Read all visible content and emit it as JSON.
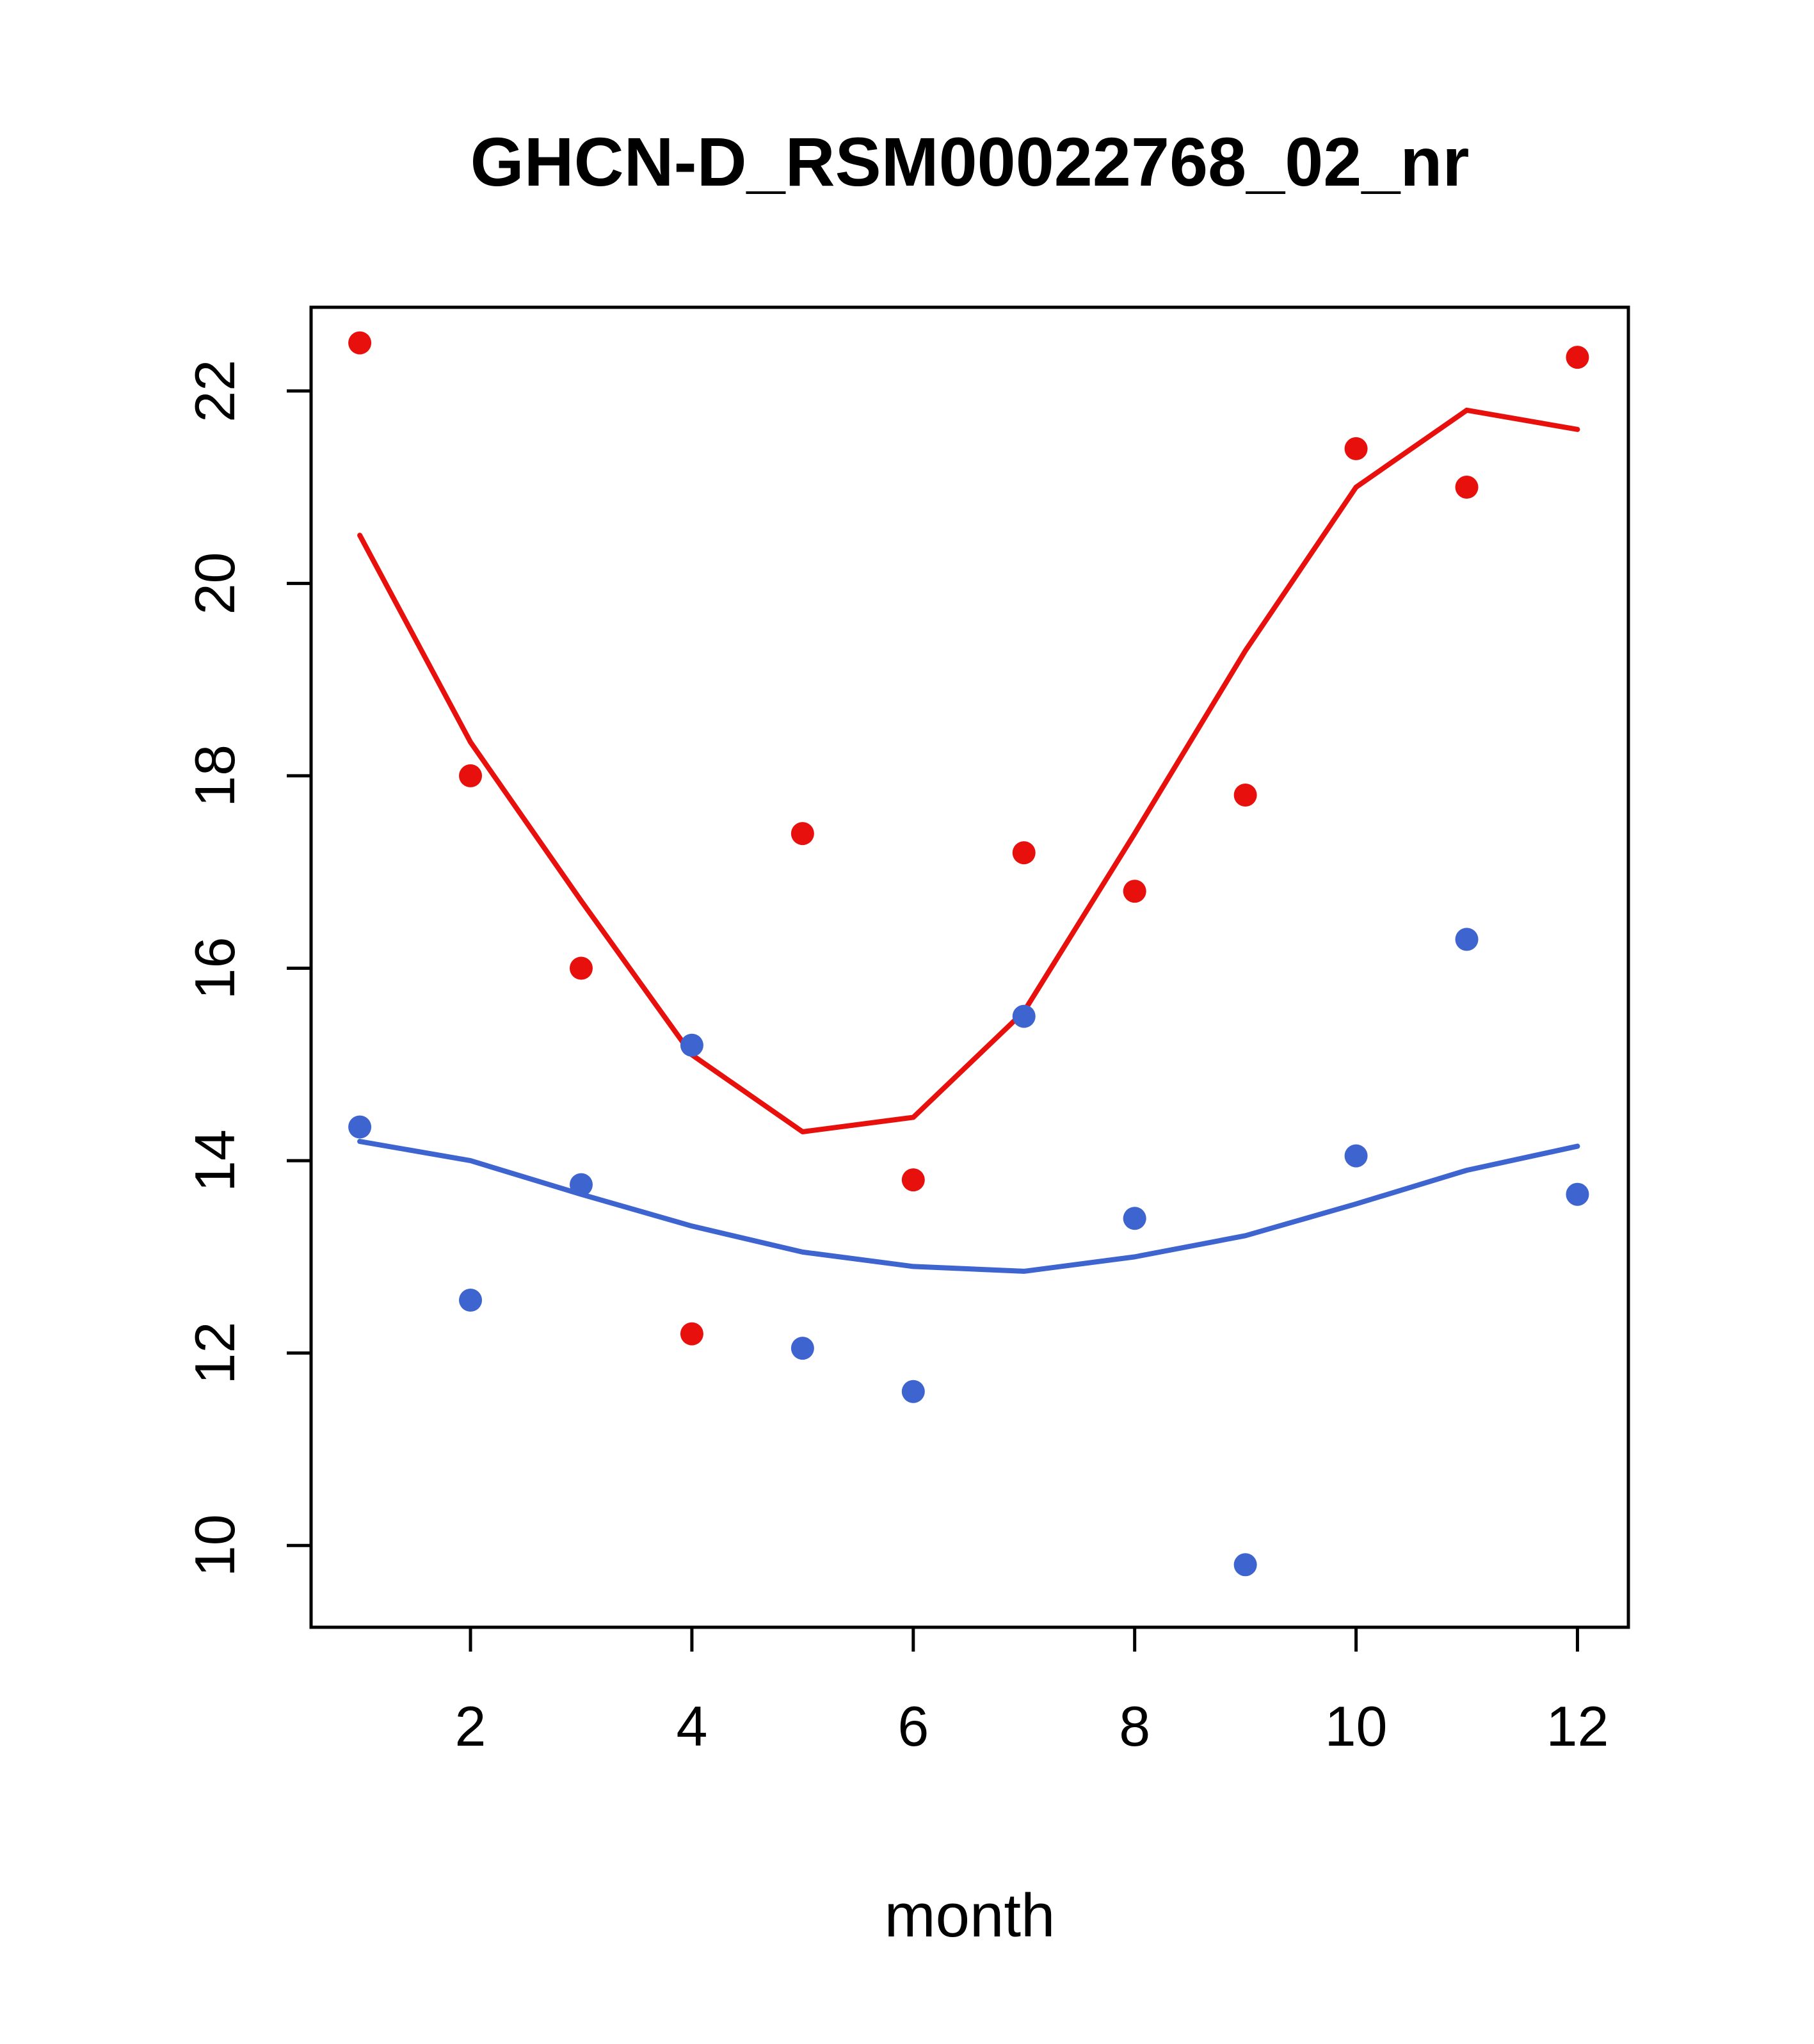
{
  "chart_data": {
    "type": "scatter",
    "title": "GHCN-D_RSM00022768_02_nr",
    "xlabel": "month",
    "ylabel": "",
    "x": [
      1,
      2,
      3,
      4,
      5,
      6,
      7,
      8,
      9,
      10,
      11,
      12
    ],
    "xticks": [
      2,
      4,
      6,
      8,
      10,
      12
    ],
    "yticks": [
      10,
      12,
      14,
      16,
      18,
      20,
      22
    ],
    "xlim": [
      0.56,
      12.46
    ],
    "ylim": [
      9.15,
      22.87
    ],
    "grid": false,
    "legend": "none",
    "colors": {
      "red": "#E8100C",
      "blue": "#3E64CF",
      "axis": "#000000",
      "background": "#FFFFFF"
    },
    "series": [
      {
        "name": "red-points",
        "style": "points",
        "color": "#E8100C",
        "values": [
          22.5,
          18.0,
          16.0,
          12.2,
          17.4,
          13.8,
          17.2,
          16.8,
          17.8,
          21.4,
          21.0,
          22.35
        ]
      },
      {
        "name": "red-line",
        "style": "line",
        "color": "#E8100C",
        "values": [
          20.5,
          18.35,
          16.7,
          15.1,
          14.3,
          14.45,
          15.55,
          17.4,
          19.3,
          21.0,
          21.8,
          21.6
        ]
      },
      {
        "name": "blue-points",
        "style": "points",
        "color": "#3E64CF",
        "values": [
          14.35,
          12.55,
          13.75,
          15.2,
          12.05,
          11.6,
          15.5,
          13.4,
          9.8,
          14.05,
          16.3,
          13.65
        ]
      },
      {
        "name": "blue-line",
        "style": "line",
        "color": "#3E64CF",
        "values": [
          14.2,
          14.0,
          13.65,
          13.32,
          13.05,
          12.9,
          12.85,
          13.0,
          13.22,
          13.55,
          13.9,
          14.15
        ]
      }
    ]
  }
}
